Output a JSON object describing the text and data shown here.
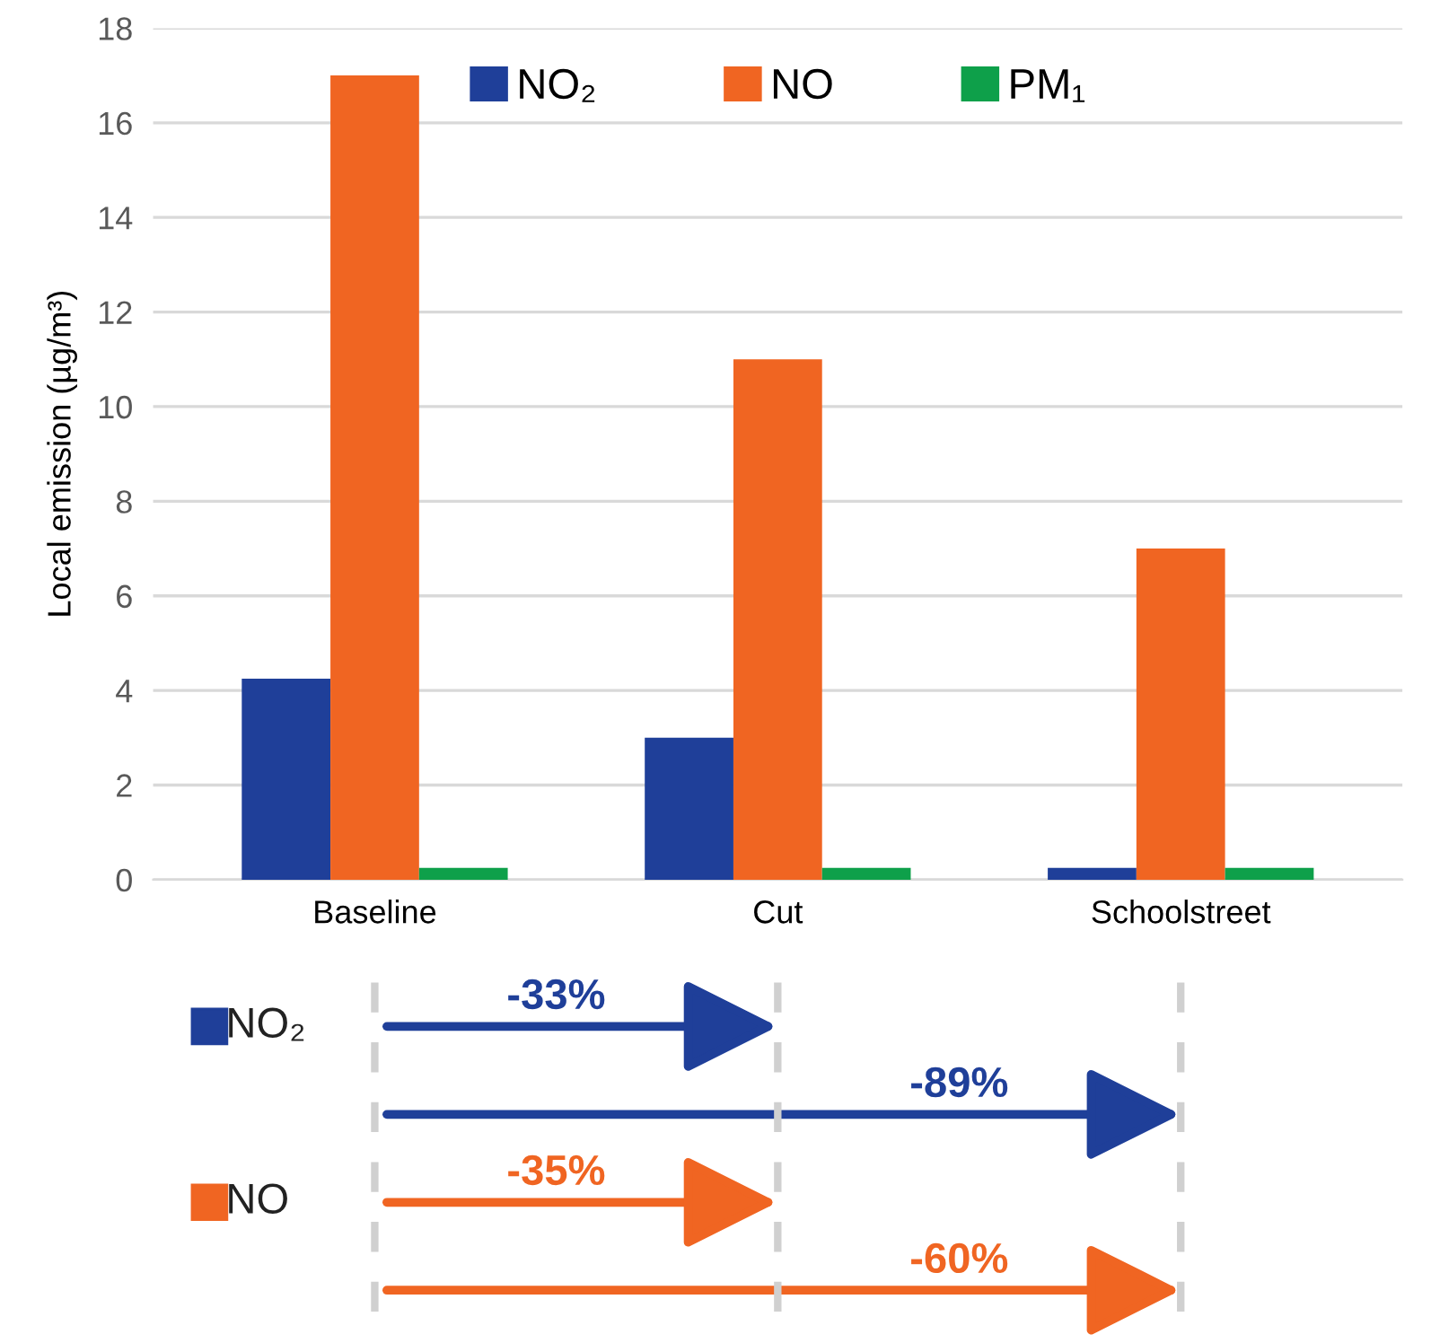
{
  "chart_data": {
    "type": "bar",
    "ylabel": "Local emission (µg/m³)",
    "categories": [
      "Baseline",
      "Cut",
      "Schoolstreet"
    ],
    "series": [
      {
        "name": "NO₂",
        "color": "#1f3f99",
        "values": [
          4.25,
          3.0,
          0.25
        ]
      },
      {
        "name": "NO",
        "color": "#f06522",
        "values": [
          17,
          11,
          7
        ]
      },
      {
        "name": "PM₁",
        "color": "#0ea04a",
        "values": [
          0.25,
          0.25,
          0.25
        ]
      }
    ],
    "ylim": [
      0,
      18
    ],
    "yticks": [
      0,
      2,
      4,
      6,
      8,
      10,
      12,
      14,
      16,
      18
    ],
    "grid": "y",
    "legend": "top",
    "annotations": [
      "NO₂",
      "-33%",
      "-89%",
      "NO",
      "-35%",
      "-60%"
    ]
  }
}
